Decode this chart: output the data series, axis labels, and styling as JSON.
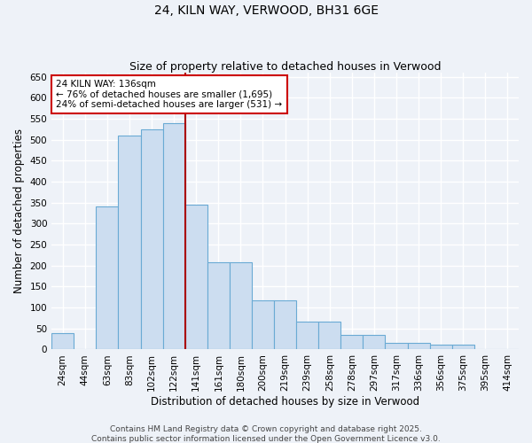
{
  "title": "24, KILN WAY, VERWOOD, BH31 6GE",
  "subtitle": "Size of property relative to detached houses in Verwood",
  "xlabel": "Distribution of detached houses by size in Verwood",
  "ylabel": "Number of detached properties",
  "categories": [
    "24sqm",
    "44sqm",
    "63sqm",
    "83sqm",
    "102sqm",
    "122sqm",
    "141sqm",
    "161sqm",
    "180sqm",
    "200sqm",
    "219sqm",
    "239sqm",
    "258sqm",
    "278sqm",
    "297sqm",
    "317sqm",
    "336sqm",
    "356sqm",
    "375sqm",
    "395sqm",
    "414sqm"
  ],
  "values": [
    40,
    0,
    340,
    510,
    525,
    540,
    345,
    208,
    208,
    118,
    118,
    67,
    67,
    35,
    35,
    16,
    16,
    11,
    11,
    2,
    2
  ],
  "bar_color": "#ccddf0",
  "bar_edge_color": "#6aaad4",
  "bar_linewidth": 0.8,
  "reference_line_index": 5,
  "reference_line_color": "#aa0000",
  "annotation_line1": "24 KILN WAY: 136sqm",
  "annotation_line2": "← 76% of detached houses are smaller (1,695)",
  "annotation_line3": "24% of semi-detached houses are larger (531) →",
  "annotation_box_facecolor": "#ffffff",
  "annotation_box_edgecolor": "#cc0000",
  "ylim": [
    0,
    660
  ],
  "yticks": [
    0,
    50,
    100,
    150,
    200,
    250,
    300,
    350,
    400,
    450,
    500,
    550,
    600,
    650
  ],
  "footer_text": "Contains HM Land Registry data © Crown copyright and database right 2025.\nContains public sector information licensed under the Open Government Licence v3.0.",
  "background_color": "#eef2f8",
  "grid_color": "#ffffff",
  "title_fontsize": 10,
  "subtitle_fontsize": 9,
  "axis_label_fontsize": 8.5,
  "tick_fontsize": 7.5,
  "annotation_fontsize": 7.5,
  "footer_fontsize": 6.5
}
